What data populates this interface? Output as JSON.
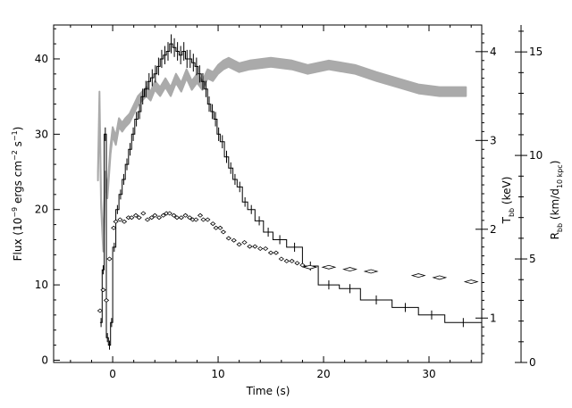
{
  "chart_data": {
    "type": "line",
    "title": "",
    "xlabel": "Time (s)",
    "xlim": [
      -5.6,
      35
    ],
    "xticks": [
      0,
      10,
      20,
      30
    ],
    "xtick_labels": [
      "0",
      "10",
      "20",
      "30"
    ],
    "axes": {
      "flux": {
        "label": "Flux (10⁻⁹ ergs cm⁻² s⁻¹)",
        "label_main": "Flux (10",
        "label_exp1": "−9",
        "label_mid": " ergs cm",
        "label_exp2": "−2",
        "label_mid2": " s",
        "label_exp3": "−1",
        "label_end": ")",
        "position": "left",
        "lim": [
          -0.3,
          44.5
        ],
        "ticks": [
          0,
          10,
          20,
          30,
          40
        ],
        "tick_labels": [
          "0",
          "10",
          "20",
          "30",
          "40"
        ]
      },
      "temperature": {
        "label": "Tbb (keV)",
        "label_main": "T",
        "label_sub": "bb",
        "label_unit": " (keV)",
        "position": "right-inner",
        "lim": [
          0.5,
          4.3
        ],
        "ticks": [
          1,
          2,
          3,
          4
        ],
        "tick_labels": [
          "1",
          "2",
          "3",
          "4"
        ]
      },
      "radius": {
        "label": "Rbb (km/d10 kpc)",
        "label_main": "R",
        "label_sub": "bb",
        "label_unit": " (km/d",
        "label_sub2": "10 kpc",
        "label_close": ")",
        "position": "right-outer",
        "lim": [
          0,
          16.3
        ],
        "ticks": [
          0,
          5,
          10,
          15
        ],
        "tick_labels": [
          "0",
          "5",
          "10",
          "15"
        ]
      }
    },
    "series": [
      {
        "axis": "flux",
        "style": "black-histogram-with-error-bars",
        "color": "#000000",
        "points": [
          [
            -1.2,
            5
          ],
          [
            -1.0,
            12
          ],
          [
            -0.8,
            30
          ],
          [
            -0.6,
            3
          ],
          [
            -0.4,
            2
          ],
          [
            -0.2,
            5
          ],
          [
            0,
            15
          ],
          [
            0.3,
            20
          ],
          [
            0.6,
            22
          ],
          [
            0.9,
            24
          ],
          [
            1.2,
            26
          ],
          [
            1.5,
            28
          ],
          [
            1.8,
            30
          ],
          [
            2.1,
            32
          ],
          [
            2.4,
            33
          ],
          [
            2.7,
            35
          ],
          [
            3.0,
            36
          ],
          [
            3.3,
            37
          ],
          [
            3.6,
            37.5
          ],
          [
            3.9,
            38
          ],
          [
            4.2,
            39
          ],
          [
            4.5,
            40
          ],
          [
            4.8,
            40.5
          ],
          [
            5.1,
            41
          ],
          [
            5.4,
            42
          ],
          [
            5.7,
            41.5
          ],
          [
            6.0,
            41
          ],
          [
            6.3,
            40.5
          ],
          [
            6.6,
            41
          ],
          [
            6.9,
            40
          ],
          [
            7.2,
            40
          ],
          [
            7.5,
            39.5
          ],
          [
            7.8,
            39
          ],
          [
            8.1,
            38
          ],
          [
            8.4,
            37
          ],
          [
            8.7,
            36
          ],
          [
            9.0,
            34
          ],
          [
            9.3,
            33
          ],
          [
            9.6,
            32
          ],
          [
            9.9,
            30
          ],
          [
            10.2,
            29
          ],
          [
            10.6,
            27
          ],
          [
            11.0,
            25.5
          ],
          [
            11.4,
            24
          ],
          [
            11.8,
            23
          ],
          [
            12.3,
            21
          ],
          [
            12.8,
            20
          ],
          [
            13.5,
            18.5
          ],
          [
            14.3,
            17
          ],
          [
            15.2,
            16
          ],
          [
            16.5,
            15
          ],
          [
            18.0,
            12.5
          ],
          [
            19.5,
            10
          ],
          [
            21.5,
            9.5
          ],
          [
            23.5,
            8
          ],
          [
            26.5,
            7
          ],
          [
            29.0,
            6
          ],
          [
            31.5,
            5
          ],
          [
            35.0,
            5
          ]
        ]
      },
      {
        "axis": "temperature",
        "style": "grey-band",
        "color": "#aaaaaa",
        "points": [
          [
            -1.4,
            2.6
          ],
          [
            -1.25,
            3.5
          ],
          [
            -1.1,
            2.3
          ],
          [
            -0.9,
            1.8
          ],
          [
            -0.7,
            2.6
          ],
          [
            -0.5,
            2.4
          ],
          [
            -0.2,
            2.9
          ],
          [
            0,
            3.1
          ],
          [
            0.3,
            3.0
          ],
          [
            0.6,
            3.2
          ],
          [
            0.9,
            3.15
          ],
          [
            1.2,
            3.2
          ],
          [
            1.6,
            3.25
          ],
          [
            2.0,
            3.35
          ],
          [
            2.4,
            3.45
          ],
          [
            2.8,
            3.5
          ],
          [
            3.2,
            3.55
          ],
          [
            3.6,
            3.5
          ],
          [
            4.0,
            3.62
          ],
          [
            4.5,
            3.55
          ],
          [
            5.0,
            3.65
          ],
          [
            5.5,
            3.55
          ],
          [
            6.0,
            3.7
          ],
          [
            6.5,
            3.6
          ],
          [
            7.0,
            3.75
          ],
          [
            7.5,
            3.62
          ],
          [
            8.0,
            3.7
          ],
          [
            8.5,
            3.62
          ],
          [
            9.0,
            3.75
          ],
          [
            9.5,
            3.72
          ],
          [
            10.0,
            3.8
          ],
          [
            10.5,
            3.85
          ],
          [
            11.0,
            3.88
          ],
          [
            12.0,
            3.82
          ],
          [
            13.0,
            3.85
          ],
          [
            15.0,
            3.88
          ],
          [
            17.0,
            3.85
          ],
          [
            18.5,
            3.8
          ],
          [
            20.5,
            3.85
          ],
          [
            23.0,
            3.8
          ],
          [
            25.0,
            3.72
          ],
          [
            27.0,
            3.65
          ],
          [
            29.0,
            3.58
          ],
          [
            31.0,
            3.55
          ],
          [
            33.5,
            3.55
          ]
        ]
      },
      {
        "axis": "radius",
        "style": "open-diamonds",
        "color": "#000000",
        "points": [
          [
            -1.2,
            2.5
          ],
          [
            -0.9,
            3.5
          ],
          [
            -0.6,
            3.0
          ],
          [
            -0.3,
            5.0
          ],
          [
            0.1,
            6.5
          ],
          [
            0.3,
            6.8
          ],
          [
            0.7,
            6.9
          ],
          [
            1.1,
            6.8
          ],
          [
            1.5,
            7.0
          ],
          [
            1.8,
            7.0
          ],
          [
            2.2,
            7.1
          ],
          [
            2.5,
            7.0
          ],
          [
            2.9,
            7.2
          ],
          [
            3.3,
            6.9
          ],
          [
            3.7,
            7.0
          ],
          [
            4.0,
            7.1
          ],
          [
            4.4,
            7.0
          ],
          [
            4.8,
            7.1
          ],
          [
            5.1,
            7.2
          ],
          [
            5.4,
            7.2
          ],
          [
            5.8,
            7.1
          ],
          [
            6.1,
            7.0
          ],
          [
            6.5,
            7.0
          ],
          [
            6.9,
            7.1
          ],
          [
            7.3,
            7.0
          ],
          [
            7.6,
            6.9
          ],
          [
            7.9,
            6.9
          ],
          [
            8.3,
            7.1
          ],
          [
            8.6,
            6.9
          ],
          [
            9.0,
            6.9
          ],
          [
            9.5,
            6.7
          ],
          [
            9.8,
            6.5
          ],
          [
            10.2,
            6.5
          ],
          [
            10.5,
            6.3
          ],
          [
            11.0,
            6.0
          ],
          [
            11.5,
            5.9
          ],
          [
            12.0,
            5.7
          ],
          [
            12.5,
            5.8
          ],
          [
            13.0,
            5.6
          ],
          [
            13.5,
            5.6
          ],
          [
            14.0,
            5.5
          ],
          [
            14.5,
            5.5
          ],
          [
            15.0,
            5.3
          ],
          [
            15.5,
            5.3
          ],
          [
            16.0,
            5.0
          ],
          [
            16.5,
            4.9
          ],
          [
            17.0,
            4.9
          ],
          [
            17.5,
            4.8
          ],
          [
            18.0,
            4.7
          ],
          [
            18.7,
            4.6
          ],
          [
            20.5,
            4.6
          ],
          [
            22.5,
            4.5
          ],
          [
            24.5,
            4.4
          ],
          [
            29.0,
            4.2
          ],
          [
            31.0,
            4.1
          ],
          [
            34.0,
            3.9
          ]
        ]
      }
    ]
  }
}
